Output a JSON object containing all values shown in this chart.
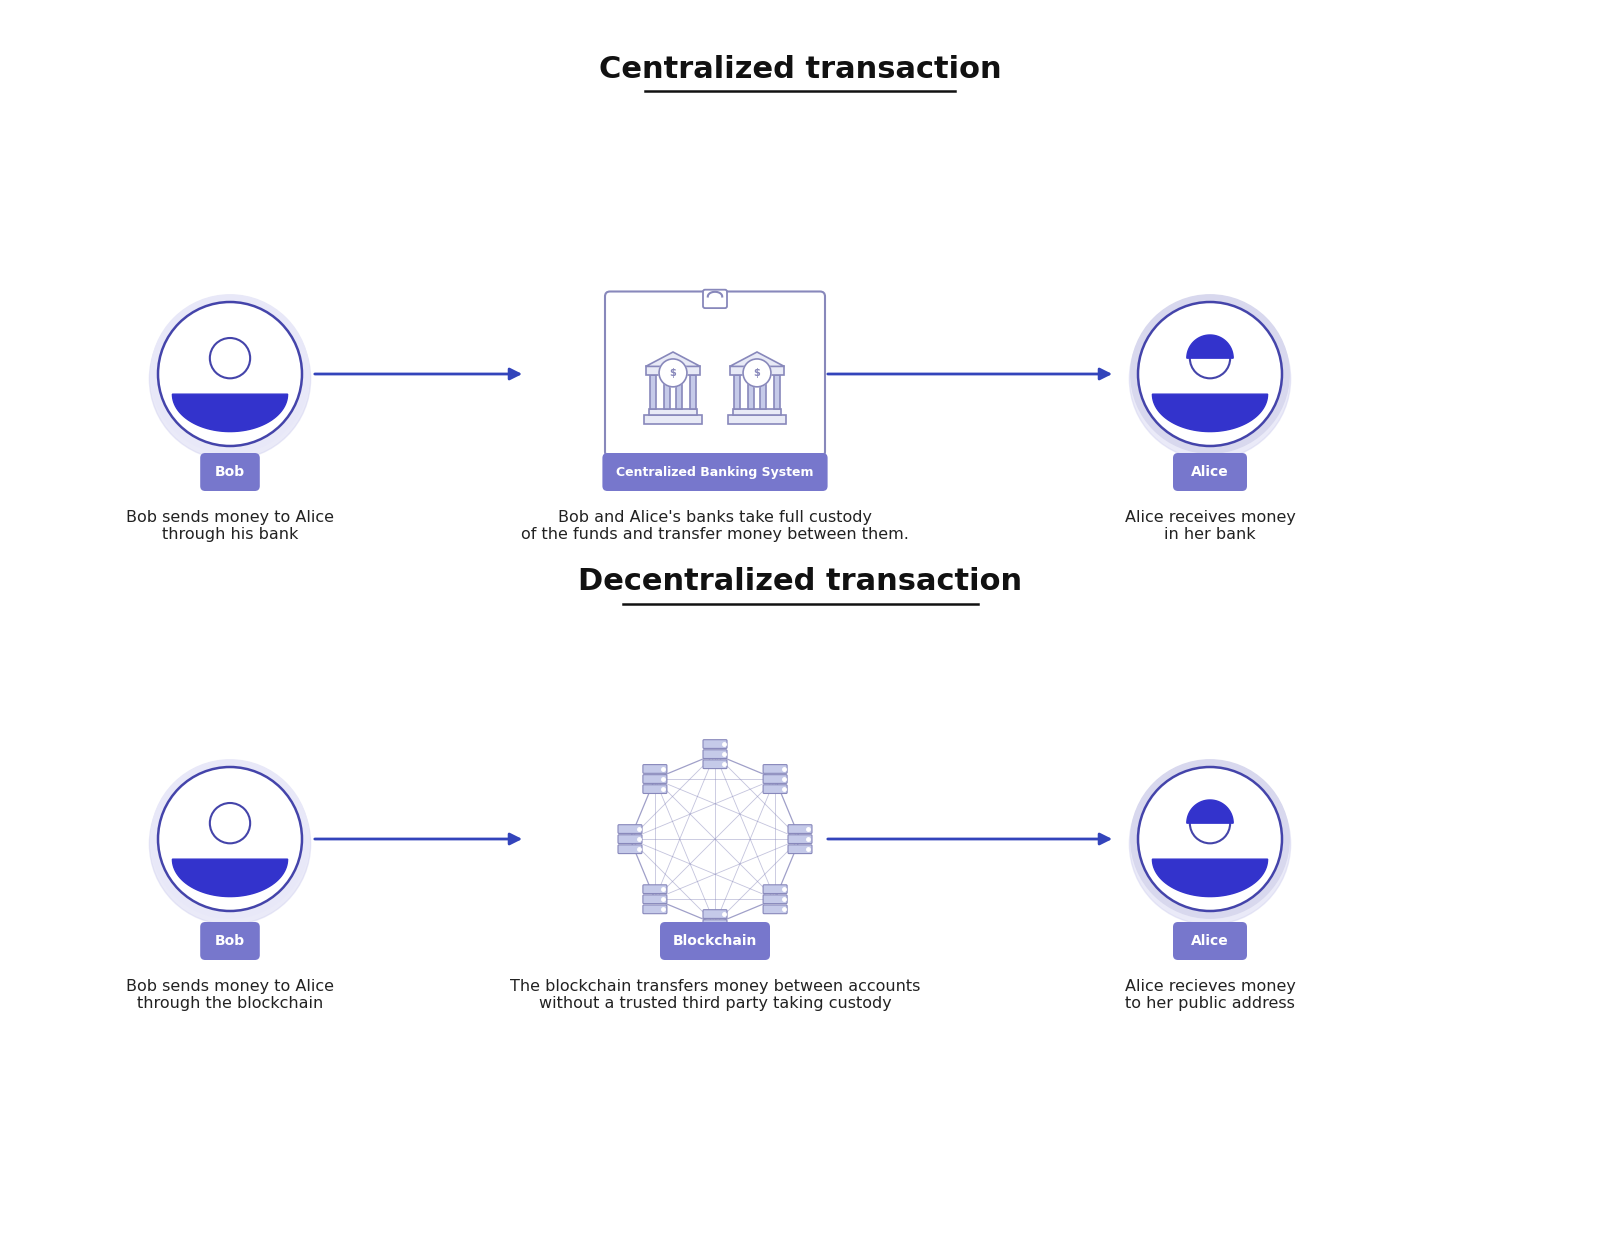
{
  "bg_color": "#ffffff",
  "title_centralized": "Centralized transaction",
  "title_decentralized": "Decentralized transaction",
  "title_fontsize": 22,
  "label_bob": "Bob",
  "label_alice": "Alice",
  "label_bank": "Centralized Banking System",
  "label_blockchain": "Blockchain",
  "label_color_bg": "#7777cc",
  "label_color_text": "#ffffff",
  "desc_bob_central": "Bob sends money to Alice\nthrough his bank",
  "desc_bank": "Bob and Alice's banks take full custody\nof the funds and transfer money between them.",
  "desc_alice_central": "Alice receives money\nin her bank",
  "desc_bob_decentral": "Bob sends money to Alice\nthrough the blockchain",
  "desc_blockchain": "The blockchain transfers money between accounts\nwithout a trusted third party taking custody",
  "desc_alice_decentral": "Alice recieves money\nto her public address",
  "person_outline_color": "#4444aa",
  "person_body_color_bob": "#3333cc",
  "person_body_color_alice": "#3333cc",
  "person_bg_bob": "#e8e8f8",
  "person_bg_alice": "#d8d8ee",
  "arrow_color": "#3344bb",
  "bank_border_color": "#8888bb",
  "bank_fill_color": "#e8eaf6",
  "bank_column_color": "#c5cae9",
  "node_color": "#c5cae9",
  "node_line_color": "#8888bb",
  "text_color": "#222222"
}
